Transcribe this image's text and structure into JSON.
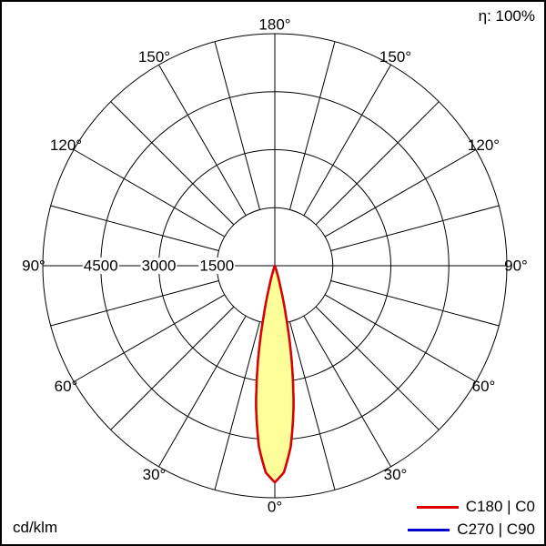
{
  "meta": {
    "efficiency": "η: 100%",
    "unit": "cd/klm"
  },
  "legend": [
    {
      "label": "C180 | C0",
      "color": "#dd0000"
    },
    {
      "label": "C270 | C90",
      "color": "#0000cc"
    }
  ],
  "chart_data": {
    "type": "polar",
    "title": "η: 100%",
    "unit": "cd/klm",
    "description": "Luminaire polar intensity distribution, narrow beam pointing to 0° (downward)",
    "angle_ticks_deg": [
      0,
      30,
      60,
      90,
      120,
      150,
      180
    ],
    "spoke_step_deg": 15,
    "radial_ticks": [
      1500,
      3000,
      4500
    ],
    "radial_max": 6000,
    "grid_color": "#000000",
    "series": [
      {
        "name": "C180 | C0",
        "color": "#dd0000",
        "fill": "#ffff99",
        "symmetric": true,
        "angles_deg": [
          0,
          2.5,
          5,
          7.5,
          10,
          12.5,
          15,
          17.5,
          20
        ],
        "values": [
          5600,
          5350,
          4700,
          3700,
          2500,
          1300,
          500,
          150,
          0
        ]
      },
      {
        "name": "C270 | C90",
        "color": "#0000cc",
        "fill": "none",
        "symmetric": true,
        "angles_deg": [
          0,
          2.5,
          5,
          7.5,
          10,
          12.5,
          15,
          17.5,
          20
        ],
        "values": [
          5600,
          5350,
          4700,
          3700,
          2500,
          1300,
          500,
          150,
          0
        ]
      }
    ]
  }
}
